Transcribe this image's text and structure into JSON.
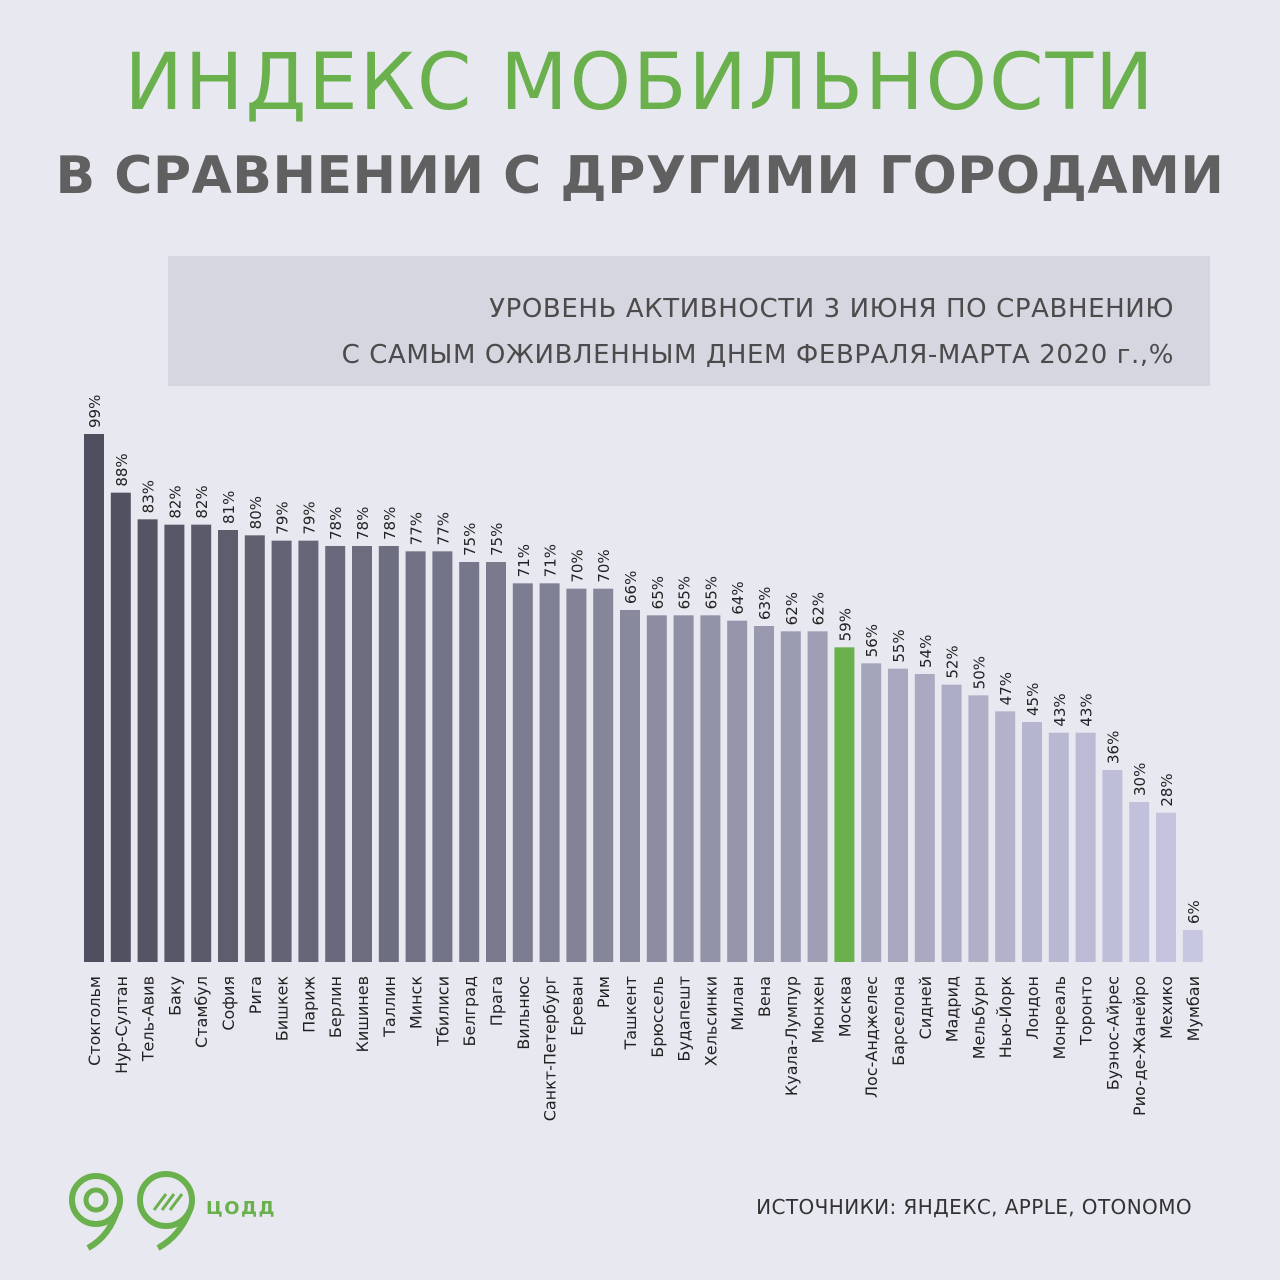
{
  "colors": {
    "background": "#e8e8f0",
    "accent_green": "#6ab04c",
    "title_gray": "#606060",
    "bar_dark": "#4e4e5e",
    "bar_light": "#c7c7e2",
    "highlight": "#6ab04c"
  },
  "header": {
    "title": "ИНДЕКС МОБИЛЬНОСТИ",
    "subtitle": "В СРАВНЕНИИ С ДРУГИМИ ГОРОДАМИ"
  },
  "caption": {
    "line1": "УРОВЕНЬ АКТИВНОСТИ 3 ИЮНЯ ПО СРАВНЕНИЮ",
    "line2": "С САМЫМ ОЖИВЛЕННЫМ ДНЕМ ФЕВРАЛЯ-МАРТА 2020 г.,%"
  },
  "chart_data": {
    "type": "bar",
    "categories": [
      "Стокгольм",
      "Нур-Султан",
      "Тель-Авив",
      "Баку",
      "Стамбул",
      "София",
      "Рига",
      "Бишкек",
      "Париж",
      "Берлин",
      "Кишинев",
      "Таллин",
      "Минск",
      "Тбилиси",
      "Белград",
      "Прага",
      "Вильнюс",
      "Санкт-Петербург",
      "Ереван",
      "Рим",
      "Ташкент",
      "Брюссель",
      "Будапешт",
      "Хельсинки",
      "Милан",
      "Вена",
      "Куала-Лумпур",
      "Мюнхен",
      "Москва",
      "Лос-Анджелес",
      "Барселона",
      "Сидней",
      "Мадрид",
      "Мельбурн",
      "Нью-Йорк",
      "Лондон",
      "Монреаль",
      "Торонто",
      "Буэнос-Айрес",
      "Рио-де-Жанейро",
      "Мехико",
      "Мумбаи"
    ],
    "values": [
      99,
      88,
      83,
      82,
      82,
      81,
      80,
      79,
      79,
      78,
      78,
      78,
      77,
      77,
      75,
      75,
      71,
      71,
      70,
      70,
      66,
      65,
      65,
      65,
      64,
      63,
      62,
      62,
      59,
      56,
      55,
      54,
      52,
      50,
      47,
      45,
      43,
      43,
      36,
      30,
      28,
      6
    ],
    "value_labels": [
      "99%",
      "88%",
      "83%",
      "82%",
      "82%",
      "81%",
      "80%",
      "79%",
      "79%",
      "78%",
      "78%",
      "78%",
      "77%",
      "77%",
      "75%",
      "75%",
      "71%",
      "71%",
      "70%",
      "70%",
      "66%",
      "65%",
      "65%",
      "65%",
      "64%",
      "63%",
      "62%",
      "62%",
      "59%",
      "56%",
      "55%",
      "54%",
      "52%",
      "50%",
      "47%",
      "45%",
      "43%",
      "43%",
      "36%",
      "30%",
      "28%",
      "6%"
    ],
    "highlight_category": "Москва",
    "ylim": [
      0,
      100
    ],
    "grid": false,
    "legend": "none",
    "label_orientation": "vertical"
  },
  "footer": {
    "logo_text": "ЦОДД",
    "sources": "ИСТОЧНИКИ: ЯНДЕКС, APPLE, OTONOMO"
  }
}
